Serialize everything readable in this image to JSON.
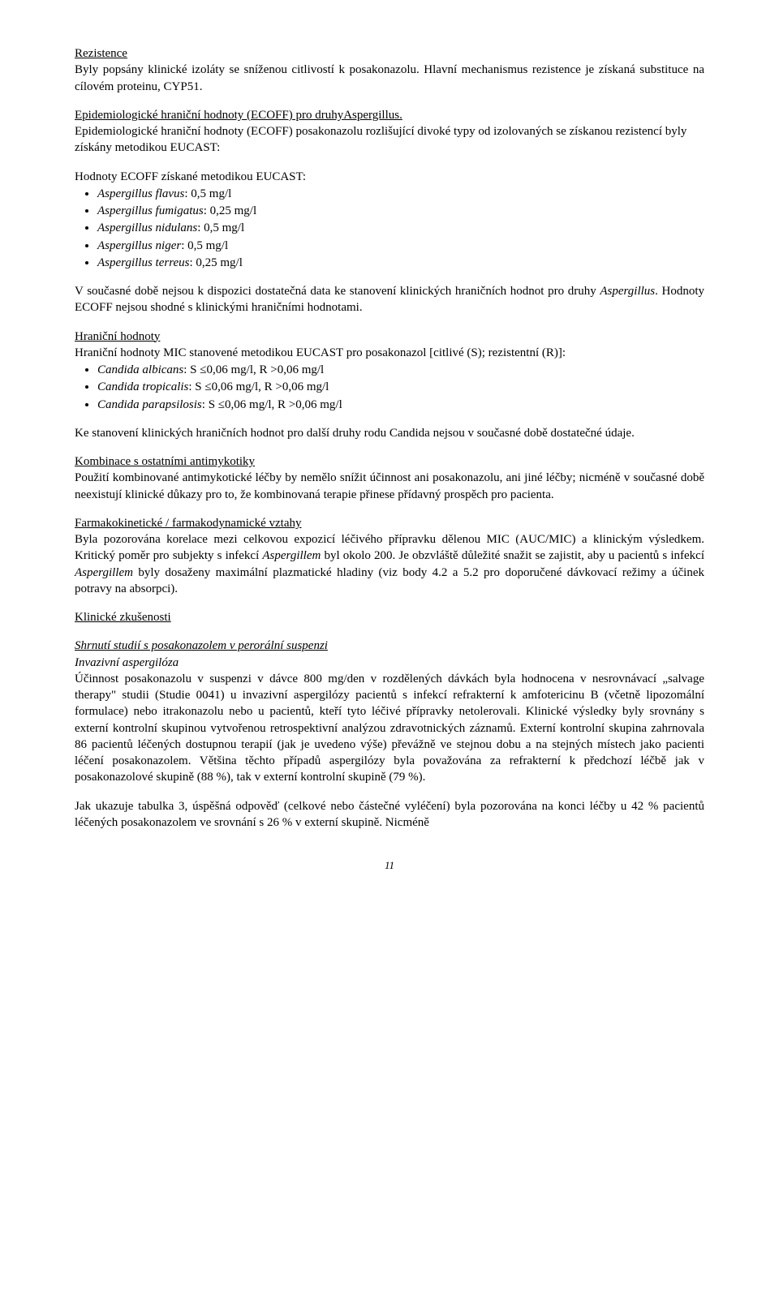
{
  "blocks": {
    "b1_title": "Rezistence",
    "b1_text": "Byly popsány klinické izoláty se sníženou citlivostí k posakonazolu. Hlavní mechanismus rezistence je získaná substituce na cílovém proteinu, CYP51.",
    "b2_title": "Epidemiologické hraniční hodnoty (ECOFF) pro druhyAspergillus.",
    "b2_text": "Epidemiologické hraniční hodnoty (ECOFF) posakonazolu rozlišující divoké typy od izolovaných se získanou rezistencí byly získány metodikou EUCAST:",
    "b3_lead": "Hodnoty ECOFF získané metodikou EUCAST:",
    "ecoff_items": [
      {
        "name": "Aspergillus flavus",
        "suffix": ": 0,5 mg/l"
      },
      {
        "name": "Aspergillus fumigatus",
        "suffix": ": 0,25 mg/l"
      },
      {
        "name": "Aspergillus nidulans",
        "suffix": ": 0,5 mg/l"
      },
      {
        "name": "Aspergillus niger",
        "suffix": ": 0,5 mg/l"
      },
      {
        "name": "Aspergillus terreus",
        "suffix": ": 0,25 mg/l"
      }
    ],
    "b4_text1": "V současné době nejsou k dispozici dostatečná data ke stanovení klinických hraničních hodnot pro druhy ",
    "b4_italic": "Aspergillus",
    "b4_text2": ". Hodnoty ECOFF nejsou shodné s klinickými hraničními hodnotami.",
    "b5_title": "Hraniční hodnoty",
    "b5_text": "Hraniční hodnoty MIC stanovené metodikou EUCAST pro posakonazol [citlivé (S); rezistentní (R)]:",
    "mic_items": [
      {
        "name": "Candida albicans",
        "suffix": ": S ≤0,06 mg/l, R >0,06 mg/l"
      },
      {
        "name": "Candida tropicalis",
        "suffix": ": S ≤0,06 mg/l, R >0,06 mg/l"
      },
      {
        "name": "Candida parapsilosis",
        "suffix": ": S ≤0,06 mg/l, R >0,06 mg/l"
      }
    ],
    "b6_text": "Ke stanovení klinických hraničních hodnot pro další druhy rodu Candida nejsou v současné době dostatečné údaje.",
    "b7_title": "Kombinace s ostatními antimykotiky",
    "b7_text": "Použití kombinované antimykotické léčby by nemělo snížit účinnost ani posakonazolu, ani jiné léčby; nicméně v současné době neexistují klinické důkazy pro to, že kombinovaná terapie přinese přídavný prospěch pro pacienta.",
    "b8_title": "Farmakokinetické / farmakodynamické vztahy",
    "b8_text1": "Byla pozorována korelace mezi celkovou expozicí léčivého přípravku dělenou MIC (AUC/MIC) a klinickým výsledkem. Kritický poměr pro subjekty s infekcí ",
    "b8_italic1": "Aspergillem",
    "b8_text2": " byl okolo 200. Je obzvláště důležité snažit se zajistit, aby u pacientů s infekcí ",
    "b8_italic2": "Aspergillem",
    "b8_text3": " byly dosaženy maximální plazmatické hladiny (viz body 4.2 a 5.2 pro doporučené dávkovací režimy a účinek potravy na absorpci).",
    "b9_title": "Klinické zkušenosti",
    "b10_title": "Shrnutí studií s posakonazolem v perorální suspenzi",
    "b10_subtitle": "Invazivní aspergilóza",
    "b10_text": "Účinnost posakonazolu v suspenzi v dávce 800 mg/den v rozdělených dávkách byla hodnocena v nesrovnávací „salvage therapy\" studii (Studie 0041) u invazivní aspergilózy pacientů s infekcí refrakterní k amfotericinu B (včetně lipozomální formulace) nebo itrakonazolu nebo u pacientů, kteří tyto léčivé přípravky netolerovali. Klinické výsledky byly srovnány s externí kontrolní skupinou vytvořenou retrospektivní analýzou zdravotnických záznamů. Externí kontrolní skupina zahrnovala 86 pacientů léčených dostupnou terapií (jak je uvedeno výše) převážně ve stejnou dobu a na stejných místech jako pacienti léčení posakonazolem. Většina těchto případů aspergilózy byla považována za refrakterní k předchozí léčbě jak v posakonazolové skupině (88 %), tak v externí kontrolní skupině (79 %).",
    "b11_text": "Jak ukazuje tabulka 3, úspěšná odpověď (celkové nebo částečné vyléčení) byla pozorována na konci léčby u 42 % pacientů léčených posakonazolem ve srovnání s 26 % v externí skupině. Nicméně",
    "page_number": "11"
  }
}
